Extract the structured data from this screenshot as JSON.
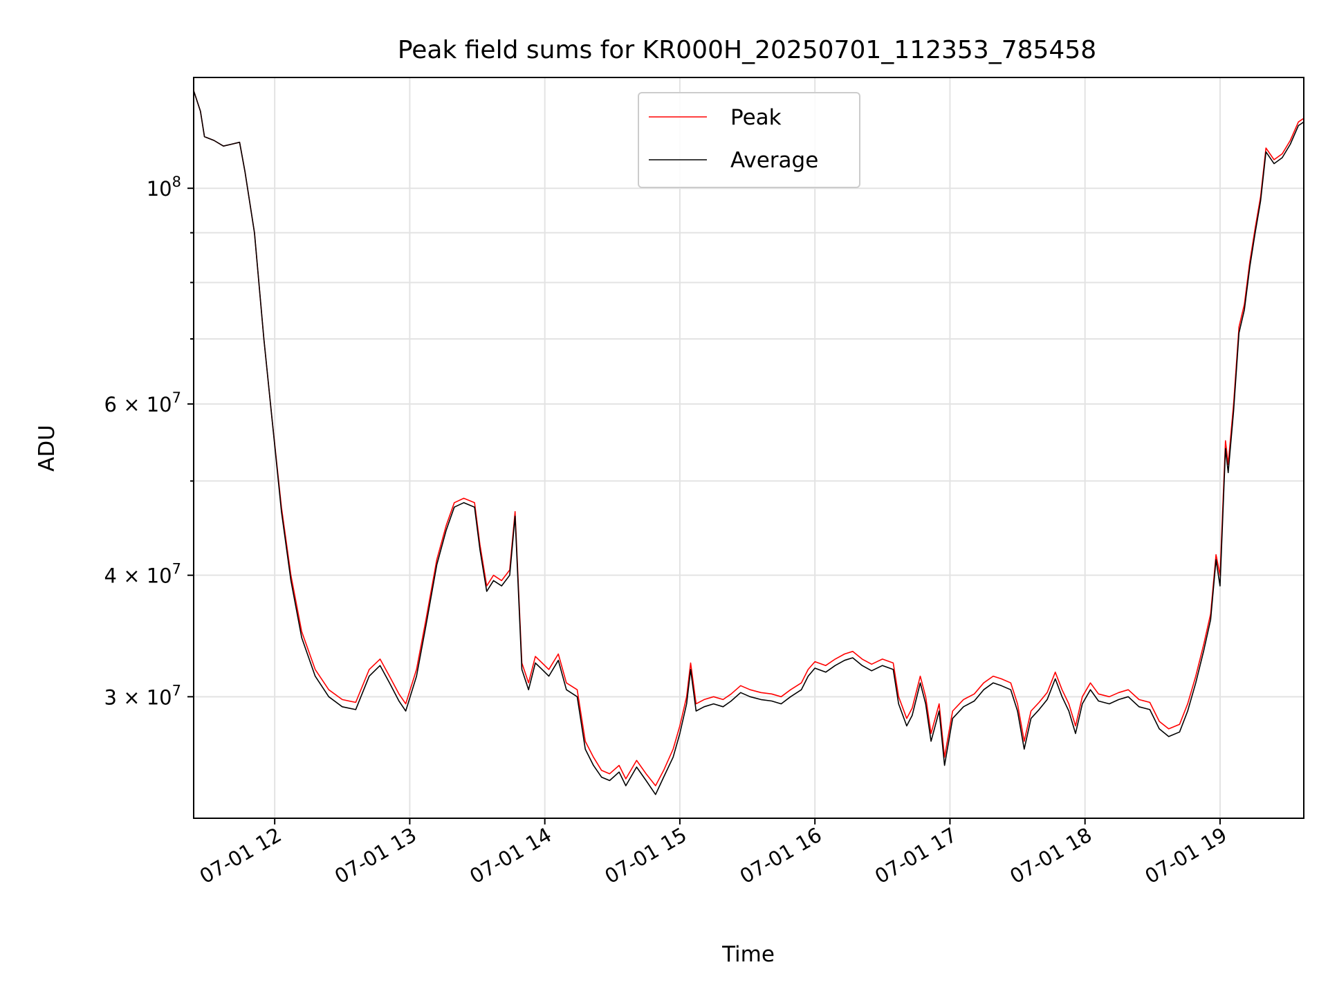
{
  "chart_data": {
    "type": "line",
    "title": "Peak field sums for KR000H_20250701_112353_785458",
    "xlabel": "Time",
    "ylabel": "ADU",
    "x_unit": "hours on 2025-07-01",
    "xlim": [
      11.4,
      19.62
    ],
    "ylim": [
      22500000,
      130000000
    ],
    "yscale": "log",
    "grid": true,
    "legend_position": "top-center",
    "x_ticks": [
      {
        "value": 12,
        "label": "07-01 12"
      },
      {
        "value": 13,
        "label": "07-01 13"
      },
      {
        "value": 14,
        "label": "07-01 14"
      },
      {
        "value": 15,
        "label": "07-01 15"
      },
      {
        "value": 16,
        "label": "07-01 16"
      },
      {
        "value": 17,
        "label": "07-01 17"
      },
      {
        "value": 18,
        "label": "07-01 18"
      },
      {
        "value": 19,
        "label": "07-01 19"
      }
    ],
    "y_major_ticks": [
      {
        "value": 30000000,
        "label_base": "3 × 10",
        "label_exp": "7"
      },
      {
        "value": 40000000,
        "label_base": "4 × 10",
        "label_exp": "7"
      },
      {
        "value": 60000000,
        "label_base": "6 × 10",
        "label_exp": "7"
      },
      {
        "value": 100000000,
        "label_base": "10",
        "label_exp": "8"
      }
    ],
    "y_minor_gridlines": [
      50000000,
      70000000,
      80000000,
      90000000
    ],
    "colors": {
      "peak": "#ff0000",
      "average": "#000000"
    },
    "series": [
      {
        "name": "Peak",
        "color": "#ff0000",
        "points": [
          [
            11.4,
            126000000
          ],
          [
            11.45,
            120000000
          ],
          [
            11.48,
            113000000
          ],
          [
            11.55,
            112000000
          ],
          [
            11.62,
            110500000
          ],
          [
            11.68,
            111000000
          ],
          [
            11.74,
            111500000
          ],
          [
            11.78,
            104000000
          ],
          [
            11.85,
            90000000
          ],
          [
            11.92,
            70000000
          ],
          [
            11.98,
            58000000
          ],
          [
            12.05,
            47000000
          ],
          [
            12.12,
            40000000
          ],
          [
            12.2,
            35000000
          ],
          [
            12.3,
            32000000
          ],
          [
            12.4,
            30500000
          ],
          [
            12.5,
            29800000
          ],
          [
            12.6,
            29600000
          ],
          [
            12.7,
            32000000
          ],
          [
            12.78,
            32800000
          ],
          [
            12.85,
            31500000
          ],
          [
            12.92,
            30200000
          ],
          [
            12.97,
            29500000
          ],
          [
            13.05,
            32000000
          ],
          [
            13.12,
            36000000
          ],
          [
            13.2,
            41500000
          ],
          [
            13.27,
            45000000
          ],
          [
            13.33,
            47500000
          ],
          [
            13.4,
            48000000
          ],
          [
            13.48,
            47500000
          ],
          [
            13.52,
            43000000
          ],
          [
            13.57,
            39000000
          ],
          [
            13.62,
            40000000
          ],
          [
            13.68,
            39500000
          ],
          [
            13.74,
            40500000
          ],
          [
            13.78,
            46500000
          ],
          [
            13.83,
            32500000
          ],
          [
            13.88,
            31000000
          ],
          [
            13.93,
            33000000
          ],
          [
            13.98,
            32500000
          ],
          [
            14.03,
            32000000
          ],
          [
            14.1,
            33200000
          ],
          [
            14.16,
            31000000
          ],
          [
            14.24,
            30500000
          ],
          [
            14.3,
            27000000
          ],
          [
            14.36,
            26000000
          ],
          [
            14.42,
            25200000
          ],
          [
            14.48,
            25000000
          ],
          [
            14.55,
            25500000
          ],
          [
            14.6,
            24700000
          ],
          [
            14.68,
            25800000
          ],
          [
            14.75,
            25000000
          ],
          [
            14.82,
            24300000
          ],
          [
            14.88,
            25200000
          ],
          [
            14.95,
            26500000
          ],
          [
            15.0,
            28000000
          ],
          [
            15.05,
            30000000
          ],
          [
            15.08,
            32500000
          ],
          [
            15.12,
            29500000
          ],
          [
            15.18,
            29800000
          ],
          [
            15.25,
            30000000
          ],
          [
            15.32,
            29800000
          ],
          [
            15.38,
            30200000
          ],
          [
            15.45,
            30800000
          ],
          [
            15.52,
            30500000
          ],
          [
            15.6,
            30300000
          ],
          [
            15.68,
            30200000
          ],
          [
            15.75,
            30000000
          ],
          [
            15.82,
            30500000
          ],
          [
            15.9,
            31000000
          ],
          [
            15.95,
            32000000
          ],
          [
            16.0,
            32600000
          ],
          [
            16.08,
            32300000
          ],
          [
            16.15,
            32800000
          ],
          [
            16.22,
            33200000
          ],
          [
            16.28,
            33400000
          ],
          [
            16.35,
            32800000
          ],
          [
            16.42,
            32400000
          ],
          [
            16.5,
            32800000
          ],
          [
            16.58,
            32500000
          ],
          [
            16.62,
            30000000
          ],
          [
            16.68,
            28500000
          ],
          [
            16.72,
            29200000
          ],
          [
            16.78,
            31500000
          ],
          [
            16.82,
            30000000
          ],
          [
            16.86,
            27500000
          ],
          [
            16.92,
            29500000
          ],
          [
            16.96,
            26000000
          ],
          [
            17.02,
            29000000
          ],
          [
            17.1,
            29800000
          ],
          [
            17.18,
            30200000
          ],
          [
            17.25,
            31000000
          ],
          [
            17.32,
            31500000
          ],
          [
            17.38,
            31300000
          ],
          [
            17.45,
            31000000
          ],
          [
            17.5,
            29500000
          ],
          [
            17.55,
            27000000
          ],
          [
            17.6,
            29000000
          ],
          [
            17.66,
            29600000
          ],
          [
            17.72,
            30300000
          ],
          [
            17.78,
            31800000
          ],
          [
            17.83,
            30500000
          ],
          [
            17.88,
            29500000
          ],
          [
            17.93,
            28000000
          ],
          [
            17.98,
            30000000
          ],
          [
            18.04,
            31000000
          ],
          [
            18.1,
            30200000
          ],
          [
            18.18,
            30000000
          ],
          [
            18.25,
            30300000
          ],
          [
            18.32,
            30500000
          ],
          [
            18.4,
            29800000
          ],
          [
            18.48,
            29600000
          ],
          [
            18.55,
            28300000
          ],
          [
            18.62,
            27800000
          ],
          [
            18.7,
            28100000
          ],
          [
            18.76,
            29500000
          ],
          [
            18.82,
            31500000
          ],
          [
            18.88,
            34000000
          ],
          [
            18.93,
            36500000
          ],
          [
            18.97,
            42000000
          ],
          [
            19.0,
            40000000
          ],
          [
            19.04,
            55000000
          ],
          [
            19.06,
            52000000
          ],
          [
            19.1,
            60000000
          ],
          [
            19.14,
            72000000
          ],
          [
            19.18,
            76000000
          ],
          [
            19.22,
            84000000
          ],
          [
            19.26,
            91000000
          ],
          [
            19.3,
            98000000
          ],
          [
            19.34,
            110000000
          ],
          [
            19.4,
            107000000
          ],
          [
            19.46,
            108500000
          ],
          [
            19.52,
            112000000
          ],
          [
            19.58,
            117000000
          ],
          [
            19.62,
            118000000
          ]
        ]
      },
      {
        "name": "Average",
        "color": "#000000",
        "points": [
          [
            11.4,
            126000000
          ],
          [
            11.45,
            120000000
          ],
          [
            11.48,
            113000000
          ],
          [
            11.55,
            112000000
          ],
          [
            11.62,
            110500000
          ],
          [
            11.68,
            111000000
          ],
          [
            11.74,
            111500000
          ],
          [
            11.78,
            104000000
          ],
          [
            11.85,
            90000000
          ],
          [
            11.92,
            70000000
          ],
          [
            11.98,
            58000000
          ],
          [
            12.05,
            46500000
          ],
          [
            12.12,
            39500000
          ],
          [
            12.2,
            34500000
          ],
          [
            12.3,
            31500000
          ],
          [
            12.4,
            30000000
          ],
          [
            12.5,
            29300000
          ],
          [
            12.6,
            29100000
          ],
          [
            12.7,
            31500000
          ],
          [
            12.78,
            32300000
          ],
          [
            12.85,
            31000000
          ],
          [
            12.92,
            29700000
          ],
          [
            12.97,
            29000000
          ],
          [
            13.05,
            31500000
          ],
          [
            13.12,
            35500000
          ],
          [
            13.2,
            41000000
          ],
          [
            13.27,
            44500000
          ],
          [
            13.33,
            47000000
          ],
          [
            13.4,
            47500000
          ],
          [
            13.48,
            47000000
          ],
          [
            13.52,
            42500000
          ],
          [
            13.57,
            38500000
          ],
          [
            13.62,
            39500000
          ],
          [
            13.68,
            39000000
          ],
          [
            13.74,
            40000000
          ],
          [
            13.78,
            46000000
          ],
          [
            13.83,
            32000000
          ],
          [
            13.88,
            30500000
          ],
          [
            13.93,
            32500000
          ],
          [
            13.98,
            32000000
          ],
          [
            14.03,
            31500000
          ],
          [
            14.1,
            32700000
          ],
          [
            14.16,
            30500000
          ],
          [
            14.24,
            30000000
          ],
          [
            14.3,
            26500000
          ],
          [
            14.36,
            25500000
          ],
          [
            14.42,
            24800000
          ],
          [
            14.48,
            24600000
          ],
          [
            14.55,
            25100000
          ],
          [
            14.6,
            24300000
          ],
          [
            14.68,
            25400000
          ],
          [
            14.75,
            24600000
          ],
          [
            14.82,
            23800000
          ],
          [
            14.88,
            24800000
          ],
          [
            14.95,
            26000000
          ],
          [
            15.0,
            27500000
          ],
          [
            15.05,
            29500000
          ],
          [
            15.08,
            32000000
          ],
          [
            15.12,
            29000000
          ],
          [
            15.18,
            29300000
          ],
          [
            15.25,
            29500000
          ],
          [
            15.32,
            29300000
          ],
          [
            15.38,
            29700000
          ],
          [
            15.45,
            30300000
          ],
          [
            15.52,
            30000000
          ],
          [
            15.6,
            29800000
          ],
          [
            15.68,
            29700000
          ],
          [
            15.75,
            29500000
          ],
          [
            15.82,
            30000000
          ],
          [
            15.9,
            30500000
          ],
          [
            15.95,
            31500000
          ],
          [
            16.0,
            32100000
          ],
          [
            16.08,
            31800000
          ],
          [
            16.15,
            32300000
          ],
          [
            16.22,
            32700000
          ],
          [
            16.28,
            32900000
          ],
          [
            16.35,
            32300000
          ],
          [
            16.42,
            31900000
          ],
          [
            16.5,
            32300000
          ],
          [
            16.58,
            32000000
          ],
          [
            16.62,
            29500000
          ],
          [
            16.68,
            28000000
          ],
          [
            16.72,
            28700000
          ],
          [
            16.78,
            31000000
          ],
          [
            16.82,
            29500000
          ],
          [
            16.86,
            27000000
          ],
          [
            16.92,
            29000000
          ],
          [
            16.96,
            25500000
          ],
          [
            17.02,
            28500000
          ],
          [
            17.1,
            29300000
          ],
          [
            17.18,
            29700000
          ],
          [
            17.25,
            30500000
          ],
          [
            17.32,
            31000000
          ],
          [
            17.38,
            30800000
          ],
          [
            17.45,
            30500000
          ],
          [
            17.5,
            29000000
          ],
          [
            17.55,
            26500000
          ],
          [
            17.6,
            28500000
          ],
          [
            17.66,
            29100000
          ],
          [
            17.72,
            29800000
          ],
          [
            17.78,
            31300000
          ],
          [
            17.83,
            30000000
          ],
          [
            17.88,
            29000000
          ],
          [
            17.93,
            27500000
          ],
          [
            17.98,
            29500000
          ],
          [
            18.04,
            30500000
          ],
          [
            18.1,
            29700000
          ],
          [
            18.18,
            29500000
          ],
          [
            18.25,
            29800000
          ],
          [
            18.32,
            30000000
          ],
          [
            18.4,
            29300000
          ],
          [
            18.48,
            29100000
          ],
          [
            18.55,
            27800000
          ],
          [
            18.62,
            27300000
          ],
          [
            18.7,
            27600000
          ],
          [
            18.76,
            29000000
          ],
          [
            18.82,
            31000000
          ],
          [
            18.88,
            33500000
          ],
          [
            18.93,
            36000000
          ],
          [
            18.97,
            41500000
          ],
          [
            19.0,
            39000000
          ],
          [
            19.04,
            54000000
          ],
          [
            19.06,
            51000000
          ],
          [
            19.1,
            59000000
          ],
          [
            19.14,
            71000000
          ],
          [
            19.18,
            75000000
          ],
          [
            19.22,
            83000000
          ],
          [
            19.26,
            90000000
          ],
          [
            19.3,
            97000000
          ],
          [
            19.34,
            109000000
          ],
          [
            19.4,
            106000000
          ],
          [
            19.46,
            107500000
          ],
          [
            19.52,
            111000000
          ],
          [
            19.58,
            116000000
          ],
          [
            19.62,
            117000000
          ]
        ]
      }
    ]
  }
}
